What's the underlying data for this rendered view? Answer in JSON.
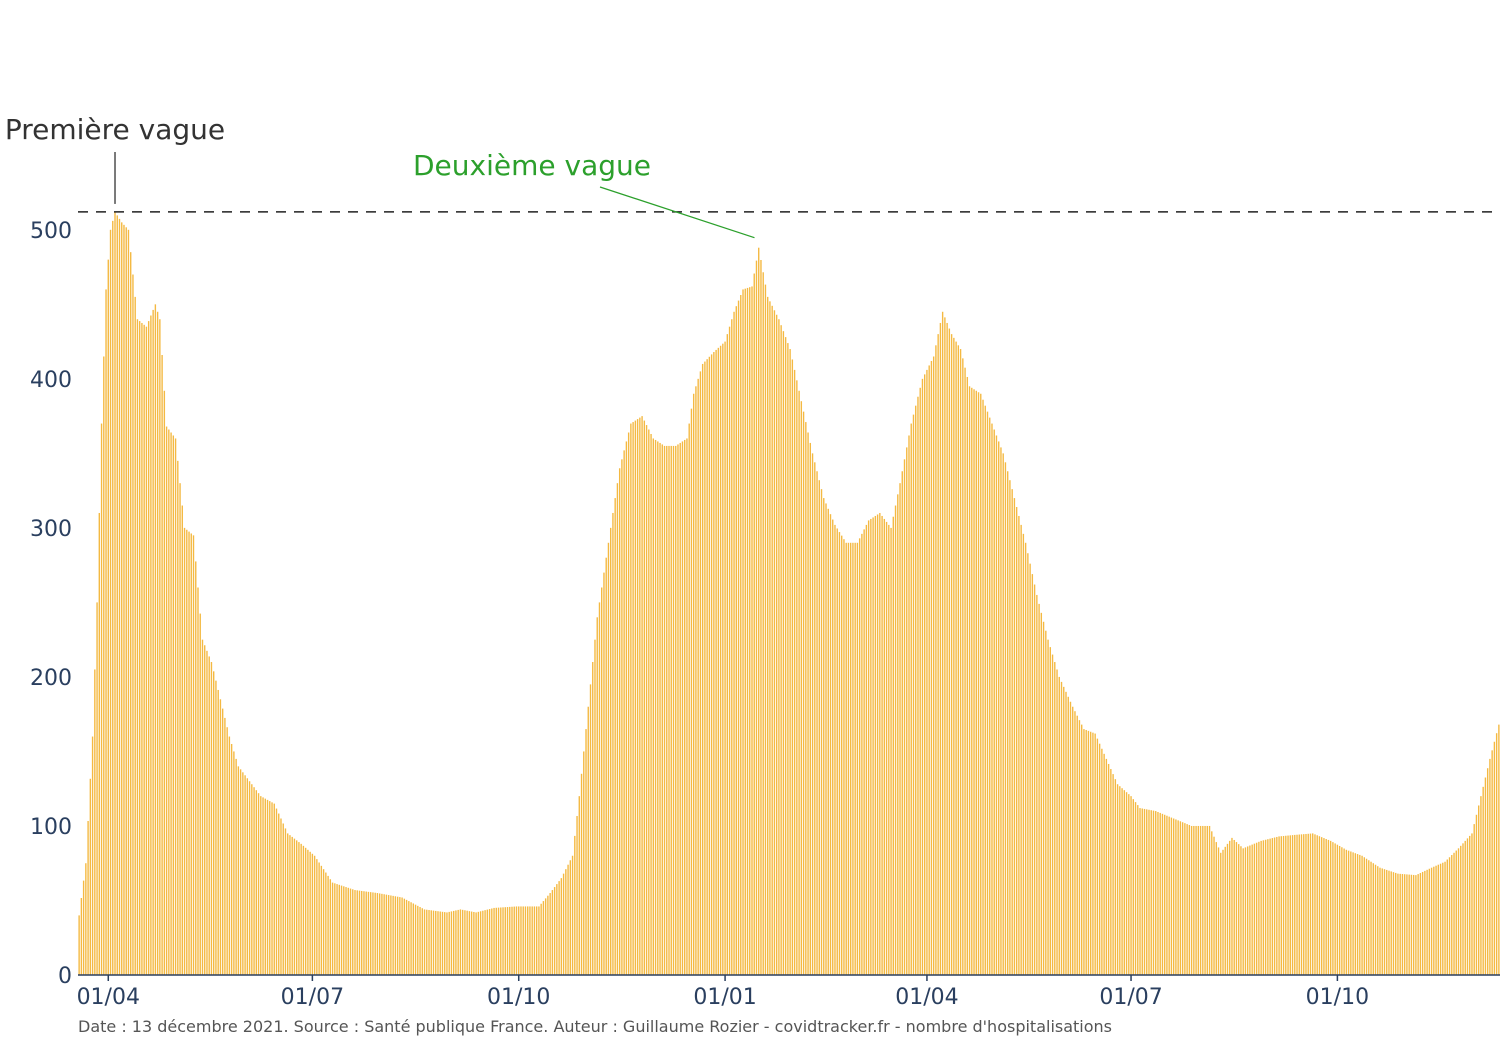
{
  "chart_data": {
    "type": "bar",
    "title": "",
    "xlabel": "",
    "ylabel": "",
    "color": "#f4b942",
    "x_start": "2020-03-19",
    "x_end": "2021-12-12",
    "x_ticks": [
      {
        "date": "2020-04-01",
        "label": "01/04"
      },
      {
        "date": "2020-07-01",
        "label": "01/07"
      },
      {
        "date": "2020-10-01",
        "label": "01/10"
      },
      {
        "date": "2021-01-01",
        "label": "01/01"
      },
      {
        "date": "2021-04-01",
        "label": "01/04"
      },
      {
        "date": "2021-07-01",
        "label": "01/07"
      },
      {
        "date": "2021-10-01",
        "label": "01/10"
      }
    ],
    "y_ticks": [
      0,
      100,
      200,
      300,
      400,
      500
    ],
    "ylim": [
      0,
      520
    ],
    "grid": false,
    "reference_line": {
      "value": 512,
      "style": "dashed",
      "color": "#222222"
    },
    "annotations": [
      {
        "text": "Première vague",
        "date": "2020-04-04",
        "value": 512,
        "color": "#333333"
      },
      {
        "text": "Deuxième vague",
        "date": "2021-01-15",
        "value": 488,
        "color": "#2ca02c"
      }
    ],
    "profile": [
      [
        "2020-03-19",
        40
      ],
      [
        "2020-03-22",
        75
      ],
      [
        "2020-03-25",
        160
      ],
      [
        "2020-03-27",
        250
      ],
      [
        "2020-03-29",
        370
      ],
      [
        "2020-03-31",
        460
      ],
      [
        "2020-04-02",
        500
      ],
      [
        "2020-04-04",
        512
      ],
      [
        "2020-04-07",
        505
      ],
      [
        "2020-04-10",
        500
      ],
      [
        "2020-04-14",
        440
      ],
      [
        "2020-04-18",
        435
      ],
      [
        "2020-04-22",
        450
      ],
      [
        "2020-04-24",
        440
      ],
      [
        "2020-04-27",
        368
      ],
      [
        "2020-05-01",
        360
      ],
      [
        "2020-05-05",
        300
      ],
      [
        "2020-05-09",
        295
      ],
      [
        "2020-05-13",
        225
      ],
      [
        "2020-05-17",
        210
      ],
      [
        "2020-05-21",
        185
      ],
      [
        "2020-05-25",
        160
      ],
      [
        "2020-05-29",
        140
      ],
      [
        "2020-06-03",
        130
      ],
      [
        "2020-06-08",
        120
      ],
      [
        "2020-06-14",
        115
      ],
      [
        "2020-06-20",
        95
      ],
      [
        "2020-06-26",
        88
      ],
      [
        "2020-07-02",
        80
      ],
      [
        "2020-07-10",
        62
      ],
      [
        "2020-07-20",
        57
      ],
      [
        "2020-07-30",
        55
      ],
      [
        "2020-08-10",
        52
      ],
      [
        "2020-08-20",
        44
      ],
      [
        "2020-08-30",
        42
      ],
      [
        "2020-09-05",
        44
      ],
      [
        "2020-09-12",
        42
      ],
      [
        "2020-09-20",
        45
      ],
      [
        "2020-09-30",
        46
      ],
      [
        "2020-10-10",
        46
      ],
      [
        "2020-10-15",
        55
      ],
      [
        "2020-10-20",
        65
      ],
      [
        "2020-10-25",
        80
      ],
      [
        "2020-10-28",
        120
      ],
      [
        "2020-11-01",
        180
      ],
      [
        "2020-11-05",
        240
      ],
      [
        "2020-11-10",
        290
      ],
      [
        "2020-11-15",
        340
      ],
      [
        "2020-11-20",
        370
      ],
      [
        "2020-11-25",
        375
      ],
      [
        "2020-11-30",
        360
      ],
      [
        "2020-12-05",
        355
      ],
      [
        "2020-12-10",
        355
      ],
      [
        "2020-12-15",
        360
      ],
      [
        "2020-12-18",
        390
      ],
      [
        "2020-12-22",
        410
      ],
      [
        "2020-12-27",
        418
      ],
      [
        "2021-01-01",
        425
      ],
      [
        "2021-01-05",
        445
      ],
      [
        "2021-01-09",
        460
      ],
      [
        "2021-01-13",
        462
      ],
      [
        "2021-01-16",
        488
      ],
      [
        "2021-01-20",
        455
      ],
      [
        "2021-01-25",
        440
      ],
      [
        "2021-01-30",
        420
      ],
      [
        "2021-02-04",
        385
      ],
      [
        "2021-02-09",
        350
      ],
      [
        "2021-02-14",
        320
      ],
      [
        "2021-02-19",
        302
      ],
      [
        "2021-02-24",
        290
      ],
      [
        "2021-03-01",
        290
      ],
      [
        "2021-03-06",
        305
      ],
      [
        "2021-03-11",
        310
      ],
      [
        "2021-03-16",
        300
      ],
      [
        "2021-03-20",
        330
      ],
      [
        "2021-03-25",
        370
      ],
      [
        "2021-03-30",
        400
      ],
      [
        "2021-04-04",
        415
      ],
      [
        "2021-04-08",
        445
      ],
      [
        "2021-04-12",
        430
      ],
      [
        "2021-04-16",
        420
      ],
      [
        "2021-04-20",
        395
      ],
      [
        "2021-04-25",
        390
      ],
      [
        "2021-04-30",
        370
      ],
      [
        "2021-05-05",
        350
      ],
      [
        "2021-05-10",
        320
      ],
      [
        "2021-05-15",
        290
      ],
      [
        "2021-05-20",
        255
      ],
      [
        "2021-05-25",
        225
      ],
      [
        "2021-05-30",
        200
      ],
      [
        "2021-06-05",
        180
      ],
      [
        "2021-06-10",
        165
      ],
      [
        "2021-06-15",
        162
      ],
      [
        "2021-06-20",
        145
      ],
      [
        "2021-06-25",
        128
      ],
      [
        "2021-07-01",
        120
      ],
      [
        "2021-07-05",
        112
      ],
      [
        "2021-07-12",
        110
      ],
      [
        "2021-07-20",
        105
      ],
      [
        "2021-07-28",
        100
      ],
      [
        "2021-08-05",
        100
      ],
      [
        "2021-08-10",
        82
      ],
      [
        "2021-08-15",
        92
      ],
      [
        "2021-08-20",
        85
      ],
      [
        "2021-08-28",
        90
      ],
      [
        "2021-09-05",
        93
      ],
      [
        "2021-09-12",
        94
      ],
      [
        "2021-09-20",
        95
      ],
      [
        "2021-09-28",
        90
      ],
      [
        "2021-10-05",
        84
      ],
      [
        "2021-10-12",
        80
      ],
      [
        "2021-10-20",
        72
      ],
      [
        "2021-10-28",
        68
      ],
      [
        "2021-11-05",
        67
      ],
      [
        "2021-11-12",
        72
      ],
      [
        "2021-11-18",
        76
      ],
      [
        "2021-11-24",
        85
      ],
      [
        "2021-11-30",
        95
      ],
      [
        "2021-12-04",
        120
      ],
      [
        "2021-12-08",
        145
      ],
      [
        "2021-12-12",
        168
      ]
    ]
  },
  "footer": "Date : 13 décembre 2021. Source : Santé publique France. Auteur : Guillaume Rozier - covidtracker.fr - nombre d'hospitalisations"
}
